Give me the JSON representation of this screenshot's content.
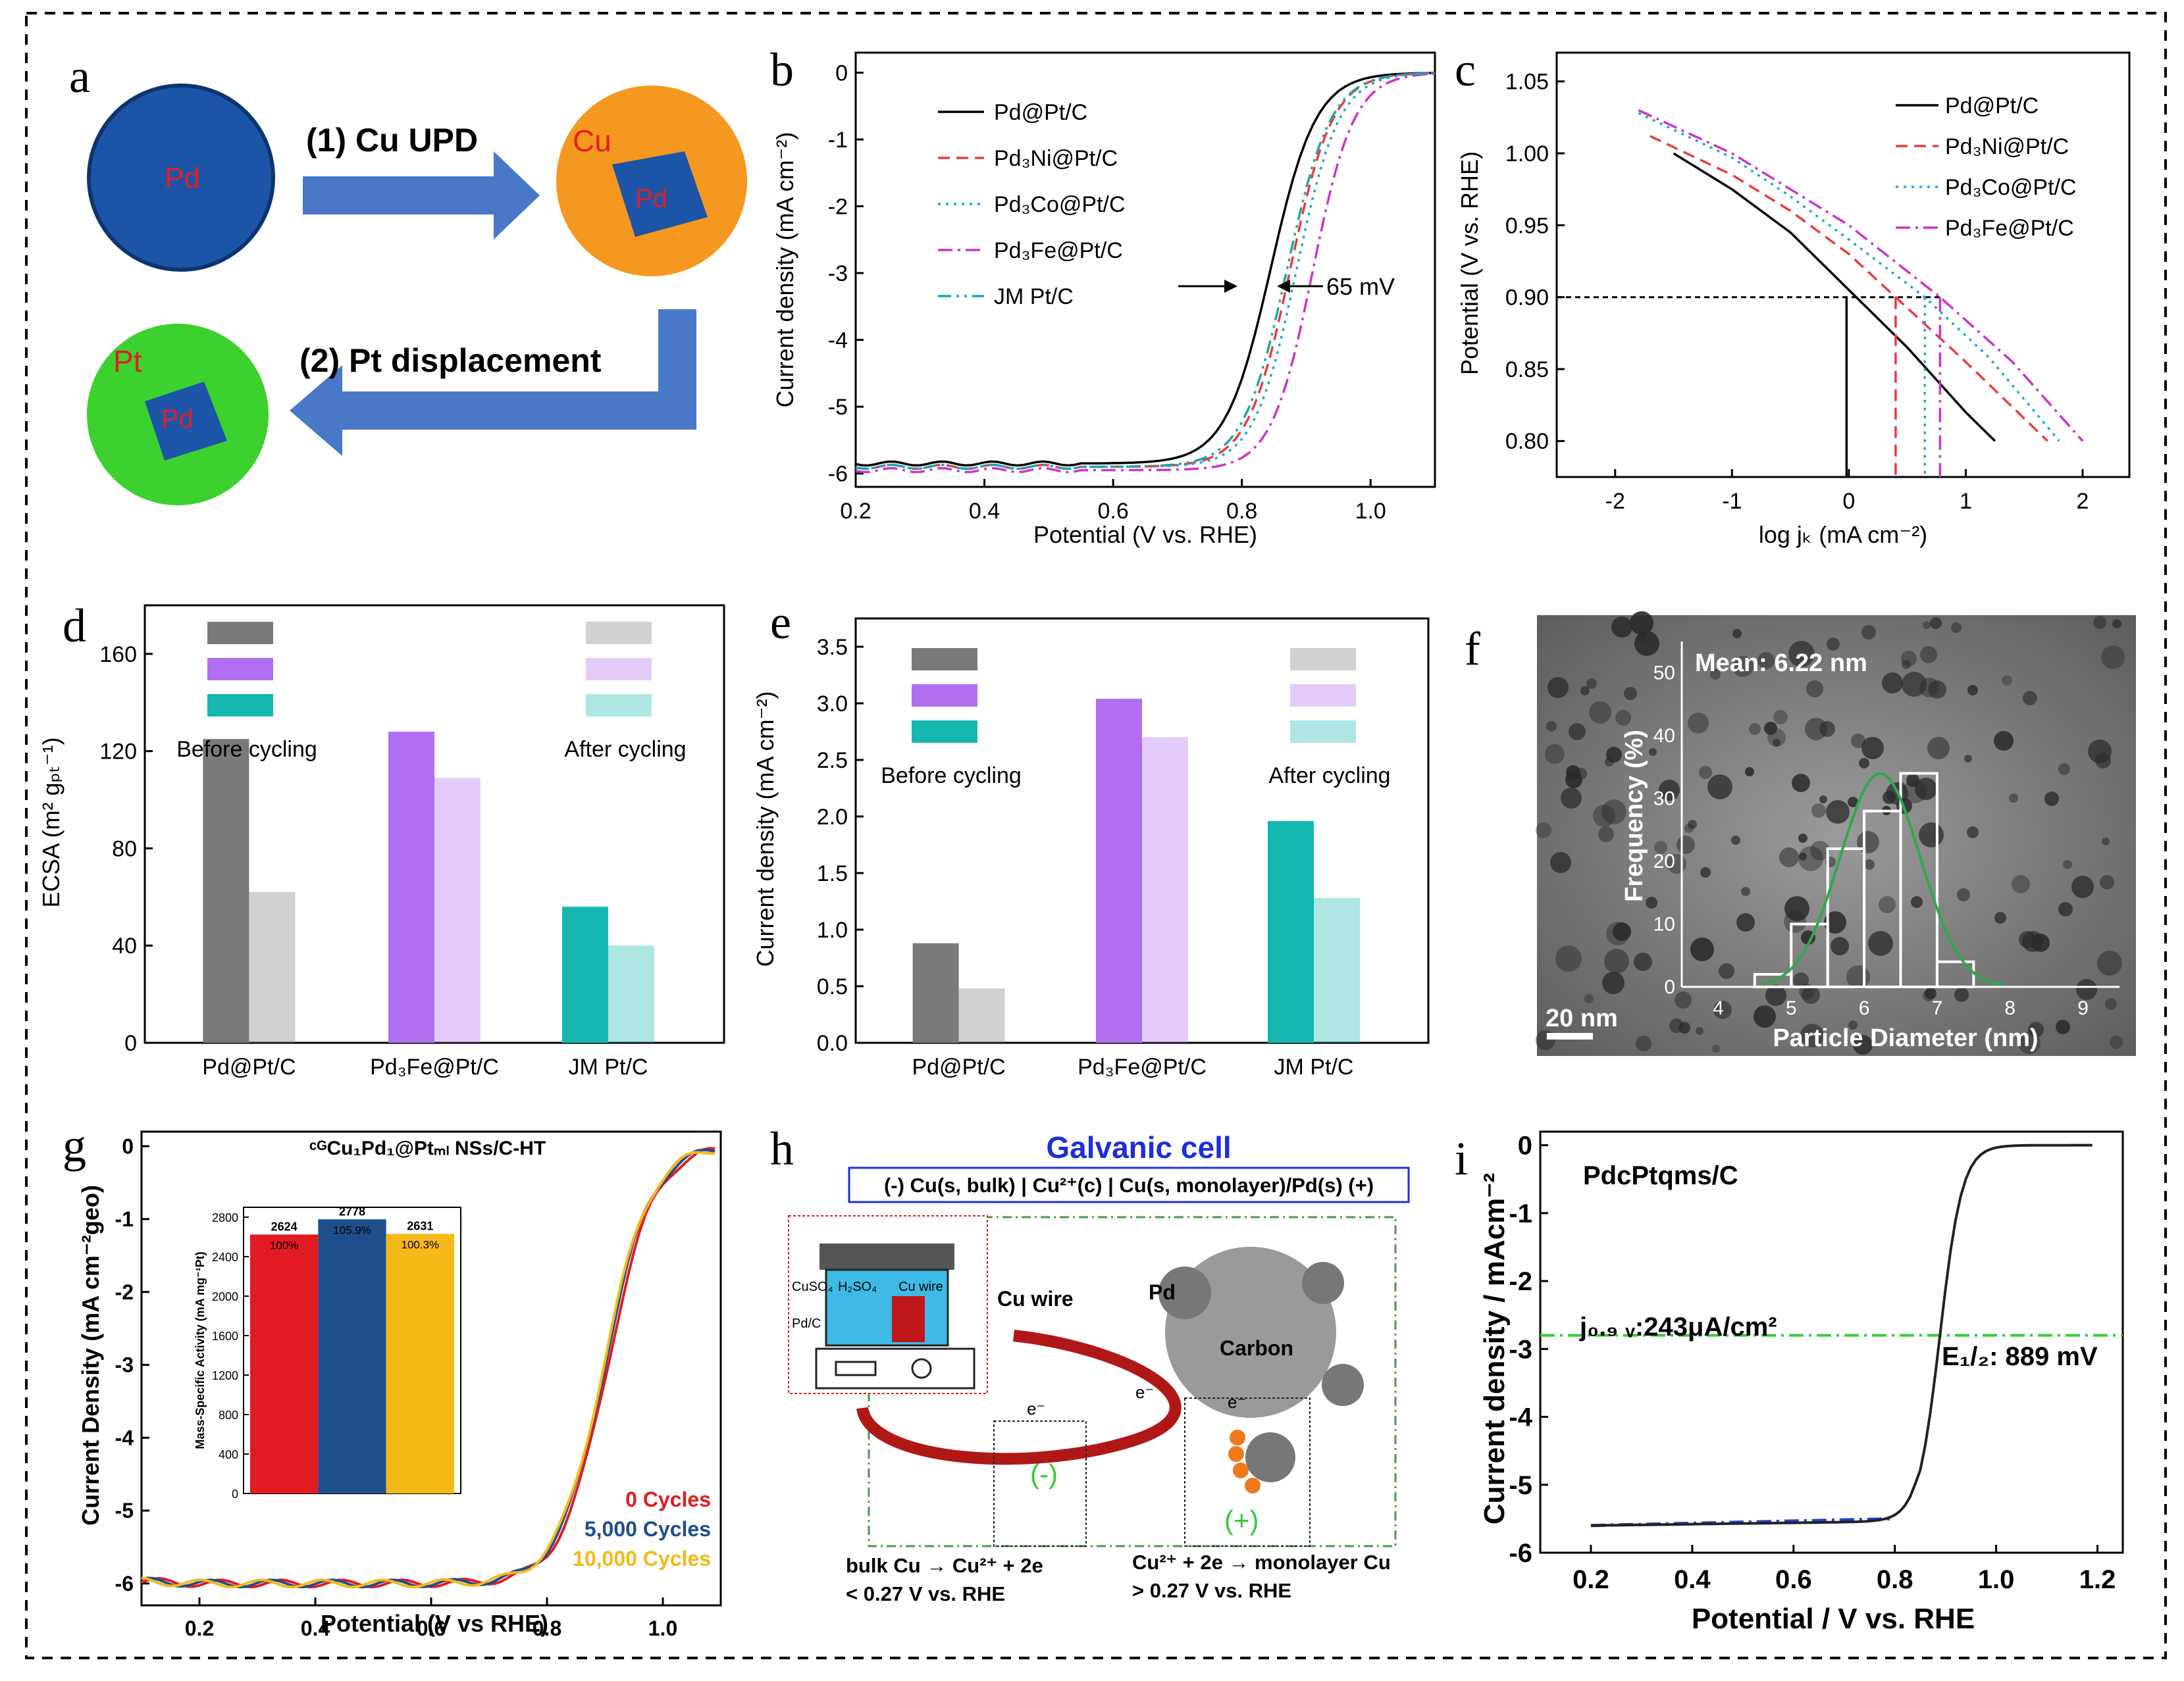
{
  "panel_labels": [
    "a",
    "b",
    "c",
    "d",
    "e",
    "f",
    "g",
    "h",
    "i"
  ],
  "colors": {
    "pdpt": "#000000",
    "pd3ni": "#ee3b3b",
    "pd3co": "#1aa7e0",
    "pd3fe": "#cc33cc",
    "jm": "#1fa5a5",
    "gray": "#7a7a7a",
    "purple": "#b06ef0",
    "teal": "#14b8b0",
    "red": "#e21b22",
    "navy": "#1f4e8c",
    "gold": "#f5b918",
    "green": "#33cc33",
    "blue": "#2244cc"
  },
  "panel_a": {
    "step1": "(1) Cu UPD",
    "step2": "(2) Pt displacement",
    "lbl_pd": "Pd",
    "lbl_cu": "Cu",
    "lbl_pt": "Pt"
  },
  "chart_data": [
    {
      "panel": "b",
      "type": "line",
      "xlabel": "Potential (V vs. RHE)",
      "ylabel": "Current density (mA cm⁻²)",
      "xlim": [
        0.2,
        1.1
      ],
      "ylim": [
        -6.2,
        0.3
      ],
      "xticks": [
        "0.2",
        "0.4",
        "0.6",
        "0.8",
        "1.0"
      ],
      "yticks": [
        "0",
        "-1",
        "-2",
        "-3",
        "-4",
        "-5",
        "-6"
      ],
      "annotation": "65 mV",
      "series": [
        {
          "name": "Pd@Pt/C",
          "e_half": 0.845,
          "jlim": -5.85,
          "width": 0.035
        },
        {
          "name": "Pd₃Ni@Pt/C",
          "e_half": 0.875,
          "jlim": -5.9,
          "width": 0.033
        },
        {
          "name": "Pd₃Co@Pt/C",
          "e_half": 0.885,
          "jlim": -5.9,
          "width": 0.033
        },
        {
          "name": "Pd₃Fe@Pt/C",
          "e_half": 0.91,
          "jlim": -5.95,
          "width": 0.032
        },
        {
          "name": "JM Pt/C",
          "e_half": 0.87,
          "jlim": -5.9,
          "width": 0.034
        }
      ]
    },
    {
      "panel": "c",
      "type": "line",
      "xlabel": "log jₖ (mA cm⁻²)",
      "ylabel": "Potential (V vs. RHE)",
      "xlim": [
        -2.5,
        2.4
      ],
      "ylim": [
        0.775,
        1.07
      ],
      "xticks": [
        "-2",
        "-1",
        "0",
        "1",
        "2"
      ],
      "yticks": [
        "0.80",
        "0.85",
        "0.90",
        "0.95",
        "1.00",
        "1.05"
      ],
      "ref_potential": 0.9,
      "series": [
        {
          "name": "Pd@Pt/C",
          "x": [
            -1.5,
            -1.0,
            -0.5,
            0.0,
            0.5,
            1.0,
            1.25
          ],
          "y": [
            1.0,
            0.975,
            0.945,
            0.905,
            0.865,
            0.82,
            0.8
          ],
          "ref_x": -0.02
        },
        {
          "name": "Pd₃Ni@Pt/C",
          "x": [
            -1.7,
            -1.0,
            -0.5,
            0.0,
            0.4,
            1.0,
            1.7
          ],
          "y": [
            1.012,
            0.985,
            0.96,
            0.93,
            0.9,
            0.855,
            0.8
          ],
          "ref_x": 0.4
        },
        {
          "name": "Pd₃Co@Pt/C",
          "x": [
            -1.8,
            -1.0,
            -0.5,
            0.0,
            0.65,
            1.2,
            1.8
          ],
          "y": [
            1.028,
            0.997,
            0.97,
            0.94,
            0.9,
            0.858,
            0.8
          ],
          "ref_x": 0.65
        },
        {
          "name": "Pd₃Fe@Pt/C",
          "x": [
            -1.8,
            -1.0,
            -0.5,
            0.0,
            0.78,
            1.4,
            2.0
          ],
          "y": [
            1.03,
            1.0,
            0.975,
            0.95,
            0.9,
            0.855,
            0.8
          ],
          "ref_x": 0.78
        }
      ]
    },
    {
      "panel": "d",
      "type": "bar",
      "ylabel": "ECSA (m² gₚₜ⁻¹)",
      "ylim": [
        0,
        180
      ],
      "yticks": [
        "0",
        "40",
        "80",
        "120",
        "160"
      ],
      "categories": [
        "Pd@Pt/C",
        "Pd₃Fe@Pt/C",
        "JM Pt/C"
      ],
      "series": [
        {
          "name": "Before cycling",
          "values": [
            125,
            128,
            56
          ]
        },
        {
          "name": "After cycling",
          "values": [
            62,
            109,
            40
          ]
        }
      ]
    },
    {
      "panel": "e",
      "type": "bar",
      "ylabel": "Current density  (mA cm⁻²)",
      "ylim": [
        0,
        3.75
      ],
      "yticks": [
        "0.0",
        "0.5",
        "1.0",
        "1.5",
        "2.0",
        "2.5",
        "3.0",
        "3.5"
      ],
      "categories": [
        "Pd@Pt/C",
        "Pd₃Fe@Pt/C",
        "JM Pt/C"
      ],
      "series": [
        {
          "name": "Before cycling",
          "values": [
            0.88,
            3.04,
            1.96
          ]
        },
        {
          "name": "After cycling",
          "values": [
            0.48,
            2.7,
            1.28
          ]
        }
      ]
    },
    {
      "panel": "f",
      "type": "bar",
      "title": "Mean: 6.22 nm",
      "xlabel": "Particle Diameter (nm)",
      "ylabel": "Frequency (%)",
      "scale_bar": "20 nm",
      "xlim": [
        3.5,
        9.5
      ],
      "ylim": [
        0,
        55
      ],
      "xticks": [
        "4",
        "5",
        "6",
        "7",
        "8",
        "9"
      ],
      "yticks": [
        "0",
        "10",
        "20",
        "30",
        "40",
        "50"
      ],
      "bin_edges": [
        4.5,
        5.0,
        5.5,
        6.0,
        6.5,
        7.0,
        7.5
      ],
      "values": [
        2,
        10,
        22,
        28,
        34,
        4
      ],
      "gauss_mean": 6.22,
      "gauss_sigma": 0.55,
      "gauss_peak": 34
    },
    {
      "panel": "g",
      "type": "line",
      "title": "ᶜᴳCu₁Pd₁@Ptₘₗ NSs/C-HT",
      "xlabel": "Potential (V vs RHE)",
      "ylabel": "Current Density (mA cm⁻²geo)",
      "xlim": [
        0.1,
        1.1
      ],
      "ylim": [
        -6.3,
        0.2
      ],
      "xticks": [
        "0.2",
        "0.4",
        "0.6",
        "0.8",
        "1.0"
      ],
      "yticks": [
        "0",
        "-1",
        "-2",
        "-3",
        "-4",
        "-5",
        "-6"
      ],
      "series": [
        {
          "name": "0 Cycles",
          "e_half": 0.905
        },
        {
          "name": "5,000 Cycles",
          "e_half": 0.9
        },
        {
          "name": "10,000 Cycles",
          "e_half": 0.898
        }
      ],
      "inset": {
        "ylabel": "Mass-Specific Activity (mA mg⁻¹Pt)",
        "ylim": [
          0,
          2900
        ],
        "yticks": [
          "0",
          "400",
          "800",
          "1200",
          "1600",
          "2000",
          "2400",
          "2800"
        ],
        "values": [
          2624,
          2778,
          2631
        ],
        "value_labels": [
          "2624",
          "2778",
          "2631"
        ],
        "pct_labels": [
          "100%",
          "105.9%",
          "100.3%"
        ]
      }
    },
    {
      "panel": "i",
      "type": "line",
      "title": "PdcPtqms/C",
      "xlabel": "Potential / V vs. RHE",
      "ylabel": "Current density / mAcm⁻²",
      "xlim": [
        0.1,
        1.25
      ],
      "ylim": [
        -6.0,
        0.2
      ],
      "xticks": [
        "0.2",
        "0.4",
        "0.6",
        "0.8",
        "1.0",
        "1.2"
      ],
      "yticks": [
        "0",
        "-1",
        "-2",
        "-3",
        "-4",
        "-5",
        "-6"
      ],
      "e_half": 0.889,
      "ref_current": -2.8,
      "jlim": -5.6,
      "annotation_j": "j₀.₉ ᵥ:243μA/cm²",
      "annotation_e": "E₁/₂: 889 mV"
    }
  ],
  "panel_h": {
    "title": "Galvanic cell",
    "cell_notation": "(-) Cu(s, bulk) | Cu²⁺(c) | Cu(s, monolayer)/Pd(s) (+)",
    "cuwire": "Cu wire",
    "carbon": "Carbon",
    "pd": "Pd",
    "electron": "e⁻",
    "minus": "(-)",
    "plus": "(+)",
    "reagent_cuso4": "CuSO₄",
    "reagent_h2so4": "H₂SO₄",
    "reagent_cuwire": "Cu wire",
    "reagent_pdc": "Pd/C",
    "eq_left": "bulk Cu → Cu²⁺ + 2e",
    "cond_left": "< 0.27 V vs. RHE",
    "eq_right": "Cu²⁺ + 2e → monolayer Cu",
    "cond_right": "> 0.27 V vs. RHE"
  }
}
